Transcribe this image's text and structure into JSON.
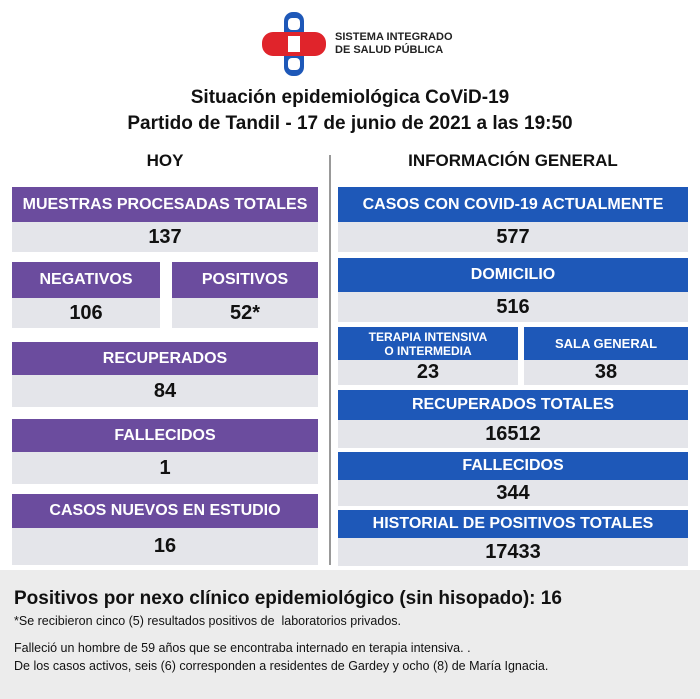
{
  "logo": {
    "line1": "SISTEMA INTEGRADO",
    "line2": "DE SALUD PÚBLICA"
  },
  "header": {
    "title": "Situación epidemiológica CoViD-19",
    "subtitle": "Partido de Tandil - 17 de junio de 2021 a las 19:50"
  },
  "left": {
    "heading": "HOY",
    "boxes": [
      {
        "label": "MUESTRAS PROCESADAS TOTALES",
        "value": "137"
      },
      {
        "label": "NEGATIVOS",
        "value": "106"
      },
      {
        "label": "POSITIVOS",
        "value": "52*"
      },
      {
        "label": "RECUPERADOS",
        "value": "84"
      },
      {
        "label": "FALLECIDOS",
        "value": "1"
      },
      {
        "label": "CASOS NUEVOS EN ESTUDIO",
        "value": "16"
      }
    ]
  },
  "right": {
    "heading": "INFORMACIÓN GENERAL",
    "boxes": [
      {
        "label": "CASOS CON COVID-19 ACTUALMENTE",
        "value": "577"
      },
      {
        "label": "DOMICILIO",
        "value": "516"
      },
      {
        "label": "TERAPIA INTENSIVA\nO INTERMEDIA",
        "value": "23"
      },
      {
        "label": "SALA GENERAL",
        "value": "38"
      },
      {
        "label": "RECUPERADOS TOTALES",
        "value": "16512"
      },
      {
        "label": "FALLECIDOS",
        "value": "344"
      },
      {
        "label": "HISTORIAL DE POSITIVOS TOTALES",
        "value": "17433"
      }
    ]
  },
  "footer": {
    "headline": "Positivos por nexo clínico epidemiológico (sin hisopado): 16",
    "lines": [
      "*Se recibieron cinco (5) resultados positivos de  laboratorios privados.",
      "Falleció un hombre de 59 años que se encontraba internado en terapia intensiva. .",
      "De los casos activos, seis (6) corresponden a residentes de Gardey y ocho (8) de María Ignacia."
    ]
  }
}
